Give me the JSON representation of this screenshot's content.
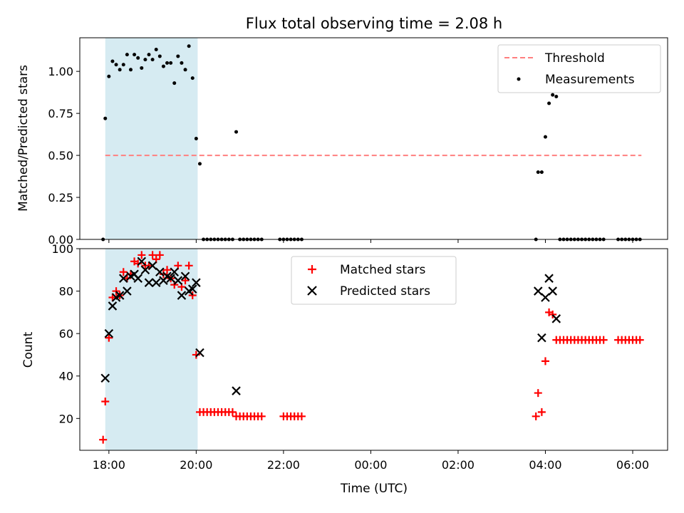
{
  "colors": {
    "shade": "#add8e6",
    "threshold": "#ff7f7f",
    "measurement": "#000000",
    "matched": "#ff0000",
    "predicted": "#000000"
  },
  "chart_data": [
    {
      "type": "scatter",
      "title": "Flux total observing time = 2.08 h",
      "xlabel": "",
      "ylabel": "Matched/Predicted stars",
      "ylim": [
        0,
        1.2
      ],
      "yticks": [
        "0.00",
        "0.25",
        "0.50",
        "0.75",
        "1.00"
      ],
      "shaded_span": [
        "17:55",
        "20:02"
      ],
      "threshold": {
        "name": "Threshold",
        "value": 0.5,
        "x_range": [
          "17:55",
          "06:12"
        ]
      },
      "legend": {
        "position": "top-right",
        "entries": [
          "Threshold",
          "Measurements"
        ]
      },
      "series": [
        {
          "name": "Measurements",
          "points": [
            [
              "17:52",
              0.0
            ],
            [
              "17:55",
              0.72
            ],
            [
              "18:00",
              0.97
            ],
            [
              "18:05",
              1.06
            ],
            [
              "18:10",
              1.04
            ],
            [
              "18:15",
              1.01
            ],
            [
              "18:20",
              1.04
            ],
            [
              "18:25",
              1.1
            ],
            [
              "18:30",
              1.01
            ],
            [
              "18:35",
              1.1
            ],
            [
              "18:40",
              1.08
            ],
            [
              "18:45",
              1.02
            ],
            [
              "18:50",
              1.07
            ],
            [
              "18:55",
              1.1
            ],
            [
              "19:00",
              1.07
            ],
            [
              "19:05",
              1.13
            ],
            [
              "19:10",
              1.09
            ],
            [
              "19:15",
              1.03
            ],
            [
              "19:20",
              1.05
            ],
            [
              "19:25",
              1.05
            ],
            [
              "19:30",
              0.93
            ],
            [
              "19:35",
              1.09
            ],
            [
              "19:40",
              1.05
            ],
            [
              "19:45",
              1.01
            ],
            [
              "19:50",
              1.15
            ],
            [
              "19:55",
              0.96
            ],
            [
              "20:00",
              0.6
            ],
            [
              "20:05",
              0.45
            ],
            [
              "20:10",
              0.0
            ],
            [
              "20:15",
              0.0
            ],
            [
              "20:20",
              0.0
            ],
            [
              "20:25",
              0.0
            ],
            [
              "20:30",
              0.0
            ],
            [
              "20:35",
              0.0
            ],
            [
              "20:40",
              0.0
            ],
            [
              "20:45",
              0.0
            ],
            [
              "20:50",
              0.0
            ],
            [
              "20:55",
              0.64
            ],
            [
              "21:00",
              0.0
            ],
            [
              "21:05",
              0.0
            ],
            [
              "21:10",
              0.0
            ],
            [
              "21:15",
              0.0
            ],
            [
              "21:20",
              0.0
            ],
            [
              "21:25",
              0.0
            ],
            [
              "21:30",
              0.0
            ],
            [
              "21:55",
              0.0
            ],
            [
              "22:00",
              0.0
            ],
            [
              "22:05",
              0.0
            ],
            [
              "22:10",
              0.0
            ],
            [
              "22:15",
              0.0
            ],
            [
              "22:20",
              0.0
            ],
            [
              "22:25",
              0.0
            ],
            [
              "03:47",
              0.0
            ],
            [
              "03:50",
              0.4
            ],
            [
              "03:55",
              0.4
            ],
            [
              "04:00",
              0.61
            ],
            [
              "04:05",
              0.81
            ],
            [
              "04:10",
              0.86
            ],
            [
              "04:15",
              0.85
            ],
            [
              "04:20",
              0.0
            ],
            [
              "04:25",
              0.0
            ],
            [
              "04:30",
              0.0
            ],
            [
              "04:35",
              0.0
            ],
            [
              "04:40",
              0.0
            ],
            [
              "04:45",
              0.0
            ],
            [
              "04:50",
              0.0
            ],
            [
              "04:55",
              0.0
            ],
            [
              "05:00",
              0.0
            ],
            [
              "05:05",
              0.0
            ],
            [
              "05:10",
              0.0
            ],
            [
              "05:15",
              0.0
            ],
            [
              "05:20",
              0.0
            ],
            [
              "05:40",
              0.0
            ],
            [
              "05:45",
              0.0
            ],
            [
              "05:50",
              0.0
            ],
            [
              "05:55",
              0.0
            ],
            [
              "06:00",
              0.0
            ],
            [
              "06:05",
              0.0
            ],
            [
              "06:10",
              0.0
            ]
          ]
        }
      ]
    },
    {
      "type": "scatter",
      "title": "",
      "xlabel": "Time (UTC)",
      "ylabel": "Count",
      "ylim": [
        5,
        100
      ],
      "yticks": [
        20,
        40,
        60,
        80,
        100
      ],
      "xticks": [
        "18:00",
        "20:00",
        "22:00",
        "00:00",
        "02:00",
        "04:00",
        "06:00"
      ],
      "xlim": [
        "17:20",
        "06:48"
      ],
      "shaded_span": [
        "17:55",
        "20:02"
      ],
      "legend": {
        "position": "top-center",
        "entries": [
          "Matched stars",
          "Predicted stars"
        ]
      },
      "series": [
        {
          "name": "Matched stars",
          "points": [
            [
              "17:52",
              10
            ],
            [
              "17:55",
              28
            ],
            [
              "18:00",
              58
            ],
            [
              "18:05",
              77
            ],
            [
              "18:10",
              80
            ],
            [
              "18:15",
              78
            ],
            [
              "18:20",
              89
            ],
            [
              "18:25",
              86
            ],
            [
              "18:30",
              88
            ],
            [
              "18:35",
              94
            ],
            [
              "18:40",
              93
            ],
            [
              "18:45",
              97
            ],
            [
              "18:50",
              92
            ],
            [
              "18:55",
              92
            ],
            [
              "19:00",
              97
            ],
            [
              "19:05",
              95
            ],
            [
              "19:10",
              97
            ],
            [
              "19:15",
              88
            ],
            [
              "19:20",
              90
            ],
            [
              "19:25",
              86
            ],
            [
              "19:30",
              83
            ],
            [
              "19:35",
              92
            ],
            [
              "19:40",
              82
            ],
            [
              "19:45",
              85
            ],
            [
              "19:50",
              92
            ],
            [
              "19:55",
              78
            ],
            [
              "20:00",
              50
            ],
            [
              "20:05",
              23
            ],
            [
              "20:10",
              23
            ],
            [
              "20:15",
              23
            ],
            [
              "20:20",
              23
            ],
            [
              "20:25",
              23
            ],
            [
              "20:30",
              23
            ],
            [
              "20:35",
              23
            ],
            [
              "20:40",
              23
            ],
            [
              "20:45",
              23
            ],
            [
              "20:50",
              23
            ],
            [
              "20:55",
              21
            ],
            [
              "21:00",
              21
            ],
            [
              "21:05",
              21
            ],
            [
              "21:10",
              21
            ],
            [
              "21:15",
              21
            ],
            [
              "21:20",
              21
            ],
            [
              "21:25",
              21
            ],
            [
              "21:30",
              21
            ],
            [
              "22:00",
              21
            ],
            [
              "22:05",
              21
            ],
            [
              "22:10",
              21
            ],
            [
              "22:15",
              21
            ],
            [
              "22:20",
              21
            ],
            [
              "22:25",
              21
            ],
            [
              "03:47",
              21
            ],
            [
              "03:50",
              32
            ],
            [
              "03:55",
              23
            ],
            [
              "04:00",
              47
            ],
            [
              "04:05",
              70
            ],
            [
              "04:10",
              69
            ],
            [
              "04:15",
              57
            ],
            [
              "04:20",
              57
            ],
            [
              "04:25",
              57
            ],
            [
              "04:30",
              57
            ],
            [
              "04:35",
              57
            ],
            [
              "04:40",
              57
            ],
            [
              "04:45",
              57
            ],
            [
              "04:50",
              57
            ],
            [
              "04:55",
              57
            ],
            [
              "05:00",
              57
            ],
            [
              "05:05",
              57
            ],
            [
              "05:10",
              57
            ],
            [
              "05:15",
              57
            ],
            [
              "05:20",
              57
            ],
            [
              "05:40",
              57
            ],
            [
              "05:45",
              57
            ],
            [
              "05:50",
              57
            ],
            [
              "05:55",
              57
            ],
            [
              "06:00",
              57
            ],
            [
              "06:05",
              57
            ],
            [
              "06:10",
              57
            ]
          ]
        },
        {
          "name": "Predicted stars",
          "points": [
            [
              "17:55",
              39
            ],
            [
              "18:00",
              60
            ],
            [
              "18:05",
              73
            ],
            [
              "18:10",
              77
            ],
            [
              "18:15",
              78
            ],
            [
              "18:20",
              86
            ],
            [
              "18:25",
              80
            ],
            [
              "18:30",
              87
            ],
            [
              "18:35",
              88
            ],
            [
              "18:40",
              86
            ],
            [
              "18:45",
              94
            ],
            [
              "18:50",
              90
            ],
            [
              "18:55",
              84
            ],
            [
              "19:00",
              92
            ],
            [
              "19:05",
              84
            ],
            [
              "19:10",
              89
            ],
            [
              "19:15",
              85
            ],
            [
              "19:20",
              87
            ],
            [
              "19:25",
              86
            ],
            [
              "19:30",
              89
            ],
            [
              "19:35",
              85
            ],
            [
              "19:40",
              78
            ],
            [
              "19:45",
              87
            ],
            [
              "19:50",
              80
            ],
            [
              "19:55",
              81
            ],
            [
              "20:00",
              84
            ],
            [
              "20:05",
              51
            ],
            [
              "20:55",
              33
            ],
            [
              "03:50",
              80
            ],
            [
              "03:55",
              58
            ],
            [
              "04:00",
              77
            ],
            [
              "04:05",
              86
            ],
            [
              "04:10",
              80
            ],
            [
              "04:15",
              67
            ]
          ]
        }
      ]
    }
  ]
}
